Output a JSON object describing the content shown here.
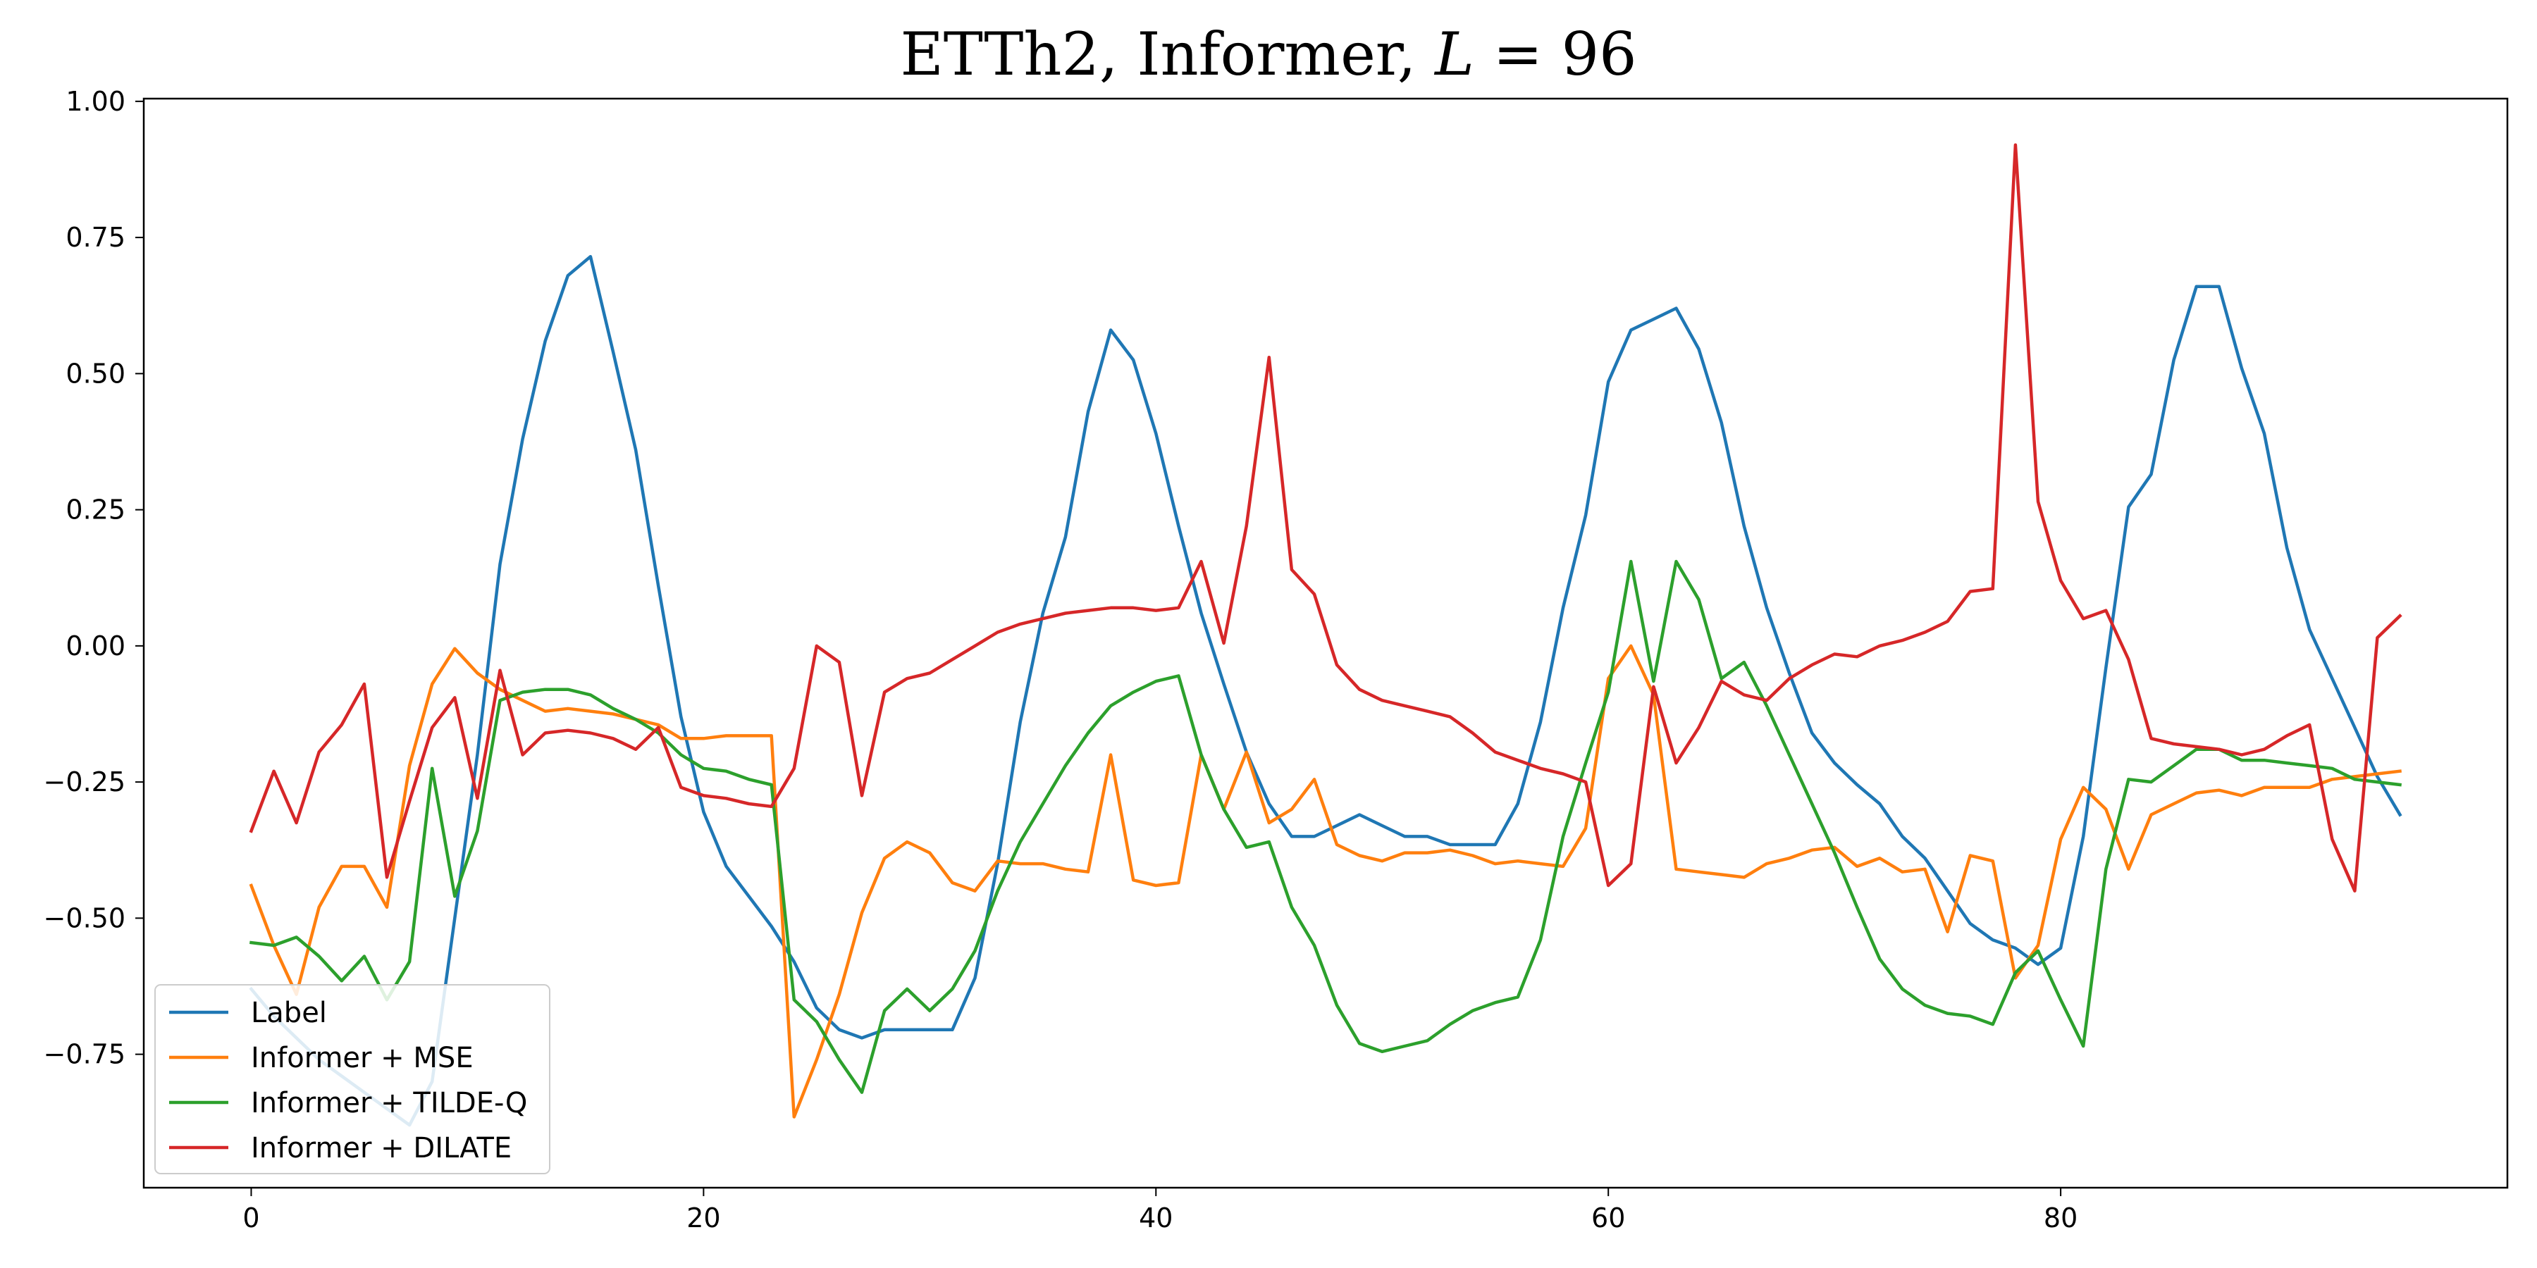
{
  "chart_data": {
    "type": "line",
    "title_parts": {
      "prefix": "ETTh2, Informer, ",
      "var": "L",
      "suffix": " = 96"
    },
    "xlabel": "",
    "ylabel": "",
    "xlim": [
      -4.75,
      99.75
    ],
    "ylim": [
      -0.995,
      1.005
    ],
    "xticks": [
      0,
      20,
      40,
      60,
      80
    ],
    "yticks": [
      1.0,
      0.75,
      0.5,
      0.25,
      0.0,
      -0.25,
      -0.5,
      -0.75
    ],
    "ytick_labels": [
      "1.00",
      "0.75",
      "0.50",
      "0.25",
      "0.00",
      "−0.25",
      "−0.50",
      "−0.75"
    ],
    "grid": false,
    "legend_position": "lower-left",
    "x": [
      0,
      1,
      2,
      3,
      4,
      5,
      6,
      7,
      8,
      9,
      10,
      11,
      12,
      13,
      14,
      15,
      16,
      17,
      18,
      19,
      20,
      21,
      22,
      23,
      24,
      25,
      26,
      27,
      28,
      29,
      30,
      31,
      32,
      33,
      34,
      35,
      36,
      37,
      38,
      39,
      40,
      41,
      42,
      43,
      44,
      45,
      46,
      47,
      48,
      49,
      50,
      51,
      52,
      53,
      54,
      55,
      56,
      57,
      58,
      59,
      60,
      61,
      62,
      63,
      64,
      65,
      66,
      67,
      68,
      69,
      70,
      71,
      72,
      73,
      74,
      75,
      76,
      77,
      78,
      79,
      80,
      81,
      82,
      83,
      84,
      85,
      86,
      87,
      88,
      89,
      90,
      91,
      92,
      93,
      94,
      95
    ],
    "series": [
      {
        "name": "Label",
        "color": "#1f77b4",
        "values": [
          -0.63,
          -0.68,
          -0.72,
          -0.76,
          -0.79,
          -0.82,
          -0.85,
          -0.88,
          -0.8,
          -0.5,
          -0.2,
          0.15,
          0.38,
          0.56,
          0.68,
          0.715,
          0.54,
          0.36,
          0.11,
          -0.13,
          -0.305,
          -0.405,
          -0.46,
          -0.515,
          -0.58,
          -0.665,
          -0.705,
          -0.72,
          -0.705,
          -0.705,
          -0.705,
          -0.705,
          -0.61,
          -0.4,
          -0.14,
          0.06,
          0.2,
          0.43,
          0.58,
          0.525,
          0.39,
          0.22,
          0.06,
          -0.07,
          -0.195,
          -0.29,
          -0.35,
          -0.35,
          -0.33,
          -0.31,
          -0.33,
          -0.35,
          -0.35,
          -0.365,
          -0.365,
          -0.365,
          -0.29,
          -0.14,
          0.07,
          0.24,
          0.485,
          0.58,
          0.6,
          0.62,
          0.545,
          0.41,
          0.22,
          0.07,
          -0.05,
          -0.16,
          -0.215,
          -0.255,
          -0.29,
          -0.35,
          -0.39,
          -0.45,
          -0.51,
          -0.54,
          -0.555,
          -0.585,
          -0.555,
          -0.35,
          -0.04,
          0.255,
          0.315,
          0.525,
          0.66,
          0.66,
          0.51,
          0.39,
          0.18,
          0.03,
          -0.06,
          -0.15,
          -0.24,
          -0.31
        ]
      },
      {
        "name": "Informer + MSE",
        "color": "#ff7f0e",
        "values": [
          -0.44,
          -0.55,
          -0.64,
          -0.48,
          -0.405,
          -0.405,
          -0.48,
          -0.22,
          -0.07,
          -0.005,
          -0.05,
          -0.08,
          -0.1,
          -0.12,
          -0.115,
          -0.12,
          -0.125,
          -0.135,
          -0.145,
          -0.17,
          -0.17,
          -0.165,
          -0.165,
          -0.165,
          -0.865,
          -0.76,
          -0.64,
          -0.49,
          -0.39,
          -0.36,
          -0.38,
          -0.435,
          -0.45,
          -0.395,
          -0.4,
          -0.4,
          -0.41,
          -0.415,
          -0.2,
          -0.43,
          -0.44,
          -0.435,
          -0.2,
          -0.3,
          -0.195,
          -0.325,
          -0.3,
          -0.245,
          -0.365,
          -0.385,
          -0.395,
          -0.38,
          -0.38,
          -0.375,
          -0.385,
          -0.4,
          -0.395,
          -0.4,
          -0.405,
          -0.335,
          -0.06,
          0.0,
          -0.09,
          -0.41,
          -0.415,
          -0.42,
          -0.425,
          -0.4,
          -0.39,
          -0.375,
          -0.37,
          -0.405,
          -0.39,
          -0.415,
          -0.41,
          -0.525,
          -0.385,
          -0.395,
          -0.61,
          -0.55,
          -0.355,
          -0.26,
          -0.3,
          -0.41,
          -0.31,
          -0.29,
          -0.27,
          -0.265,
          -0.275,
          -0.26,
          -0.26,
          -0.26,
          -0.245,
          -0.24,
          -0.235,
          -0.23
        ]
      },
      {
        "name": "Informer + TILDE-Q",
        "color": "#2ca02c",
        "values": [
          -0.545,
          -0.55,
          -0.535,
          -0.57,
          -0.615,
          -0.57,
          -0.65,
          -0.58,
          -0.225,
          -0.46,
          -0.34,
          -0.1,
          -0.085,
          -0.08,
          -0.08,
          -0.09,
          -0.115,
          -0.135,
          -0.16,
          -0.2,
          -0.225,
          -0.23,
          -0.245,
          -0.255,
          -0.65,
          -0.69,
          -0.76,
          -0.82,
          -0.67,
          -0.63,
          -0.67,
          -0.63,
          -0.56,
          -0.45,
          -0.36,
          -0.29,
          -0.22,
          -0.16,
          -0.11,
          -0.085,
          -0.065,
          -0.055,
          -0.2,
          -0.3,
          -0.37,
          -0.36,
          -0.48,
          -0.55,
          -0.66,
          -0.73,
          -0.745,
          -0.735,
          -0.725,
          -0.695,
          -0.67,
          -0.655,
          -0.645,
          -0.54,
          -0.35,
          -0.215,
          -0.085,
          0.155,
          -0.065,
          0.155,
          0.085,
          -0.06,
          -0.03,
          -0.11,
          -0.2,
          -0.29,
          -0.38,
          -0.48,
          -0.575,
          -0.63,
          -0.66,
          -0.675,
          -0.68,
          -0.695,
          -0.6,
          -0.56,
          -0.65,
          -0.735,
          -0.41,
          -0.245,
          -0.25,
          -0.22,
          -0.19,
          -0.19,
          -0.21,
          -0.21,
          -0.215,
          -0.22,
          -0.225,
          -0.245,
          -0.25,
          -0.255
        ]
      },
      {
        "name": "Informer + DILATE",
        "color": "#d62728",
        "values": [
          -0.34,
          -0.23,
          -0.325,
          -0.195,
          -0.145,
          -0.07,
          -0.425,
          -0.285,
          -0.15,
          -0.095,
          -0.28,
          -0.045,
          -0.2,
          -0.16,
          -0.155,
          -0.16,
          -0.17,
          -0.19,
          -0.15,
          -0.26,
          -0.275,
          -0.28,
          -0.29,
          -0.295,
          -0.225,
          0.0,
          -0.03,
          -0.275,
          -0.085,
          -0.06,
          -0.05,
          -0.025,
          0.0,
          0.025,
          0.04,
          0.05,
          0.06,
          0.065,
          0.07,
          0.07,
          0.065,
          0.07,
          0.155,
          0.005,
          0.22,
          0.53,
          0.14,
          0.095,
          -0.035,
          -0.08,
          -0.1,
          -0.11,
          -0.12,
          -0.13,
          -0.16,
          -0.195,
          -0.21,
          -0.225,
          -0.235,
          -0.25,
          -0.44,
          -0.4,
          -0.075,
          -0.215,
          -0.15,
          -0.065,
          -0.09,
          -0.1,
          -0.06,
          -0.035,
          -0.015,
          -0.02,
          0.0,
          0.01,
          0.025,
          0.045,
          0.1,
          0.105,
          0.92,
          0.265,
          0.12,
          0.05,
          0.065,
          -0.025,
          -0.17,
          -0.18,
          -0.185,
          -0.19,
          -0.2,
          -0.19,
          -0.165,
          -0.145,
          -0.355,
          -0.45,
          0.015,
          0.055
        ]
      }
    ]
  }
}
